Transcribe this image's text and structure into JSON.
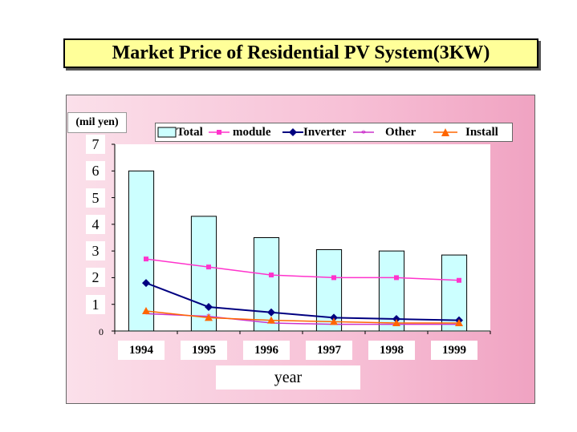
{
  "chart_data": {
    "type": "bar",
    "title": "Market Price of Residential PV System(3KW)",
    "ylabel": "(mil yen)",
    "xlabel": "year",
    "categories": [
      "1994",
      "1995",
      "1996",
      "1997",
      "1998",
      "1999"
    ],
    "ylim": [
      0,
      7
    ],
    "yticks": [
      "0",
      "1",
      "2",
      "3",
      "4",
      "5",
      "6",
      "7"
    ],
    "series": [
      {
        "name": "Total",
        "kind": "bar",
        "values": [
          6.0,
          4.3,
          3.5,
          3.05,
          3.0,
          2.85
        ],
        "color": "#ccffff"
      },
      {
        "name": "module",
        "kind": "line",
        "values": [
          2.7,
          2.4,
          2.1,
          2.0,
          2.0,
          1.9
        ],
        "color": "#ff33cc",
        "marker": "square"
      },
      {
        "name": "Inverter",
        "kind": "line",
        "values": [
          1.8,
          0.9,
          0.7,
          0.5,
          0.45,
          0.4
        ],
        "color": "#000080",
        "marker": "diamond"
      },
      {
        "name": "Other",
        "kind": "line",
        "values": [
          0.65,
          0.55,
          0.3,
          0.25,
          0.25,
          0.25
        ],
        "color": "#cc33cc",
        "marker": "star"
      },
      {
        "name": "Install",
        "kind": "line",
        "values": [
          0.75,
          0.5,
          0.4,
          0.35,
          0.3,
          0.3
        ],
        "color": "#ff6600",
        "marker": "triangle"
      }
    ],
    "legend_position": "top",
    "grid": false
  }
}
